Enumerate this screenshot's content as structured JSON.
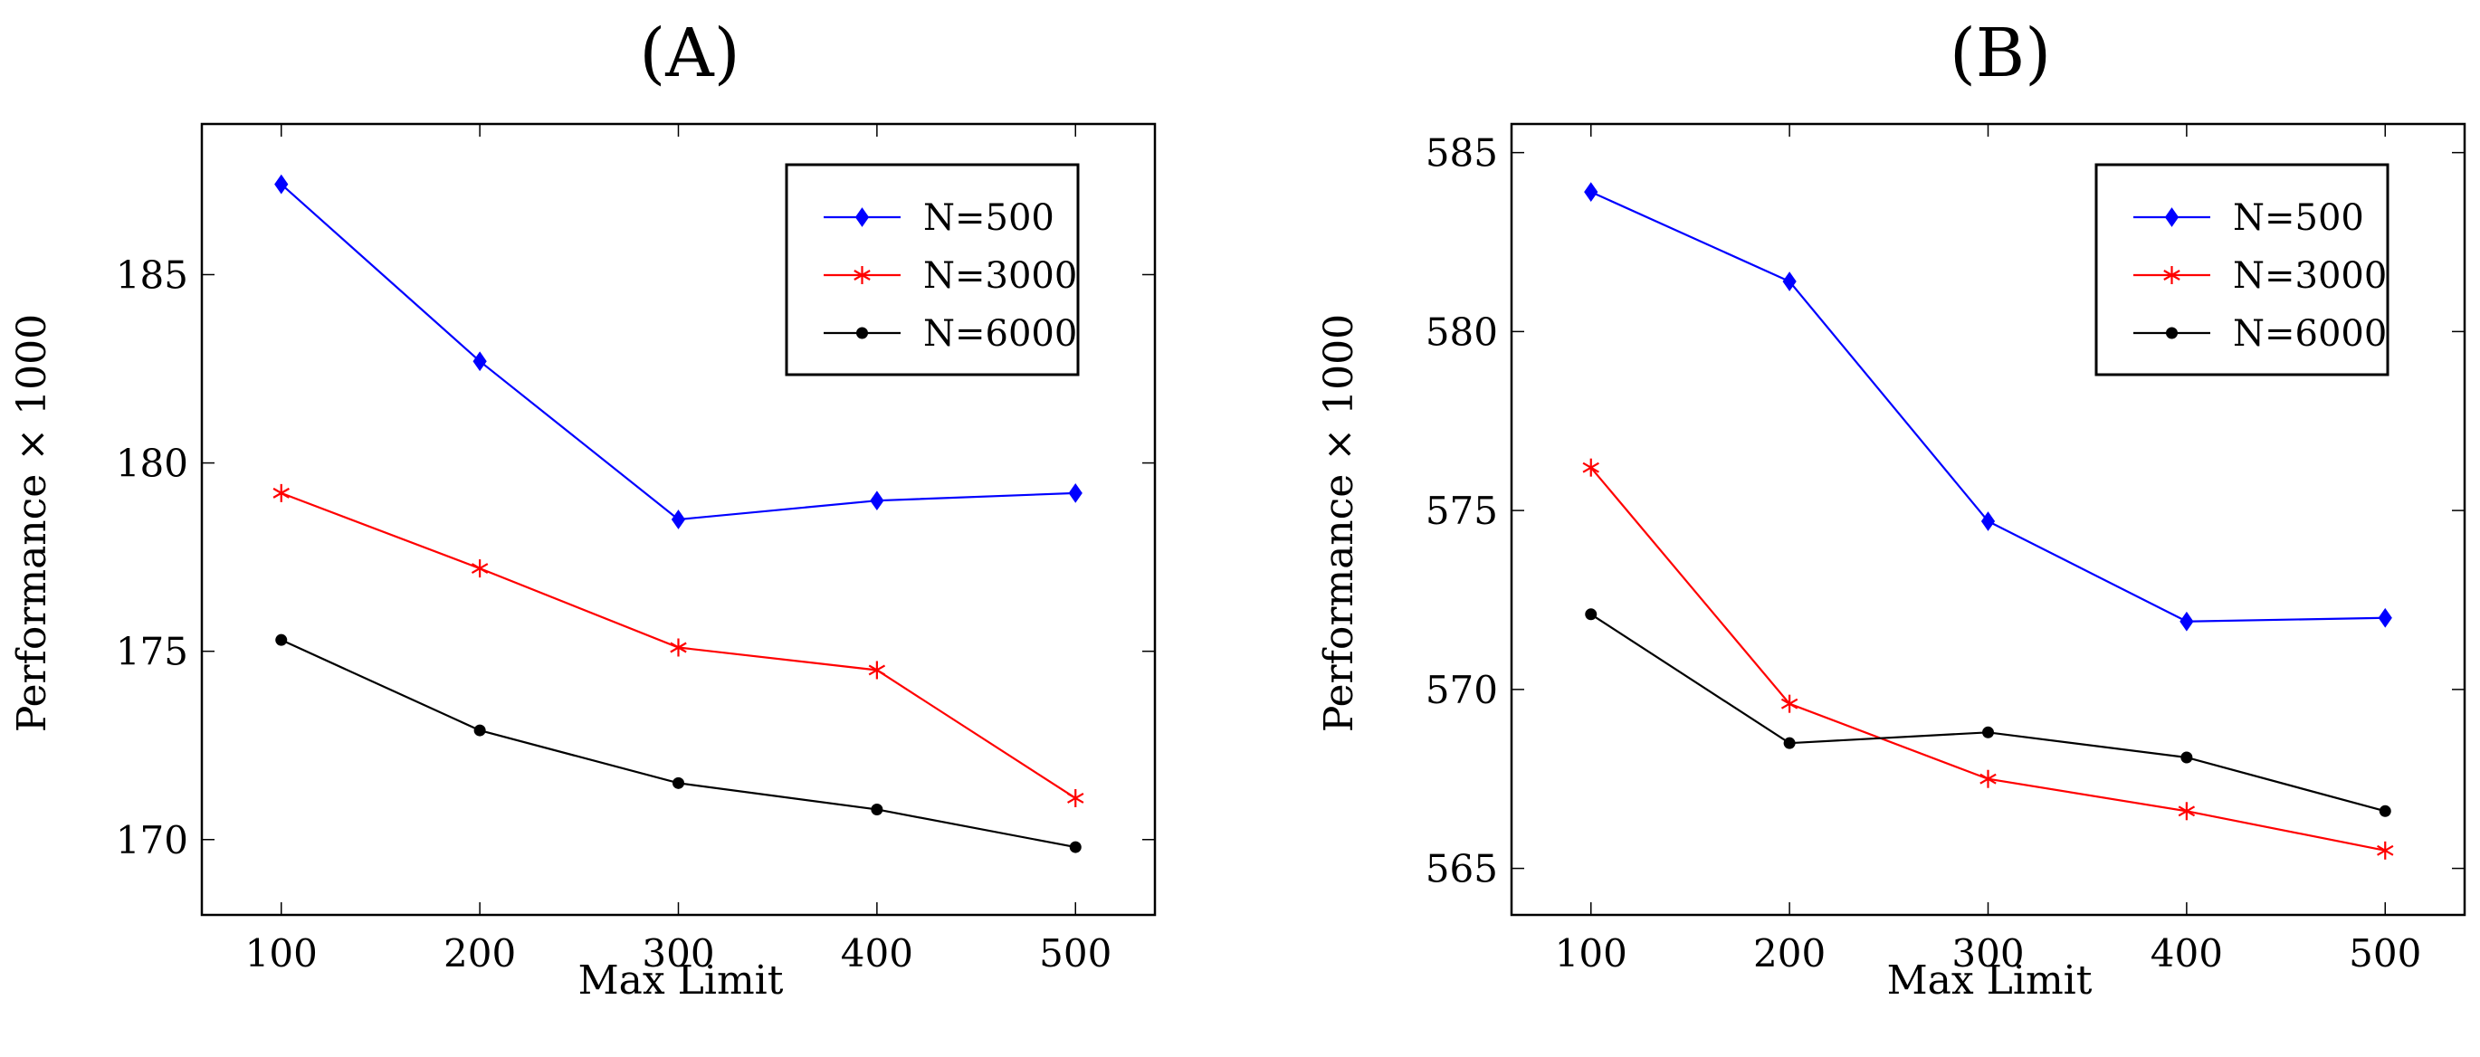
{
  "chart_data": [
    {
      "type": "line",
      "title": "(A)",
      "xlabel": "Max Limit",
      "ylabel": "Performance × 1000",
      "x": [
        100,
        200,
        300,
        400,
        500
      ],
      "xlim": [
        60,
        540
      ],
      "ylim": [
        168,
        189
      ],
      "yticks": [
        170,
        175,
        180,
        185
      ],
      "xticks": [
        100,
        200,
        300,
        400,
        500
      ],
      "legend_position": "top-right",
      "grid": false,
      "series": [
        {
          "name": "N=500",
          "color": "#0000ff",
          "marker": "diamond",
          "values": [
            187.4,
            182.7,
            178.5,
            179.0,
            179.2
          ]
        },
        {
          "name": "N=3000",
          "color": "#ff0000",
          "marker": "star",
          "values": [
            179.2,
            177.2,
            175.1,
            174.5,
            171.1
          ]
        },
        {
          "name": "N=6000",
          "color": "#000000",
          "marker": "circle",
          "values": [
            175.3,
            172.9,
            171.5,
            170.8,
            169.8
          ]
        }
      ]
    },
    {
      "type": "line",
      "title": "(B)",
      "xlabel": "Max Limit",
      "ylabel": "Performance × 1000",
      "x": [
        100,
        200,
        300,
        400,
        500
      ],
      "xlim": [
        60,
        540
      ],
      "ylim": [
        563.7,
        585.8
      ],
      "yticks": [
        565,
        570,
        575,
        580,
        585
      ],
      "xticks": [
        100,
        200,
        300,
        400,
        500
      ],
      "legend_position": "top-right",
      "grid": false,
      "series": [
        {
          "name": "N=500",
          "color": "#0000ff",
          "marker": "diamond",
          "values": [
            583.9,
            581.4,
            574.7,
            571.9,
            572.0
          ]
        },
        {
          "name": "N=3000",
          "color": "#ff0000",
          "marker": "star",
          "values": [
            576.2,
            569.6,
            567.5,
            566.6,
            565.5
          ]
        },
        {
          "name": "N=6000",
          "color": "#000000",
          "marker": "circle",
          "values": [
            572.1,
            568.5,
            568.8,
            568.1,
            566.6
          ]
        }
      ]
    }
  ]
}
